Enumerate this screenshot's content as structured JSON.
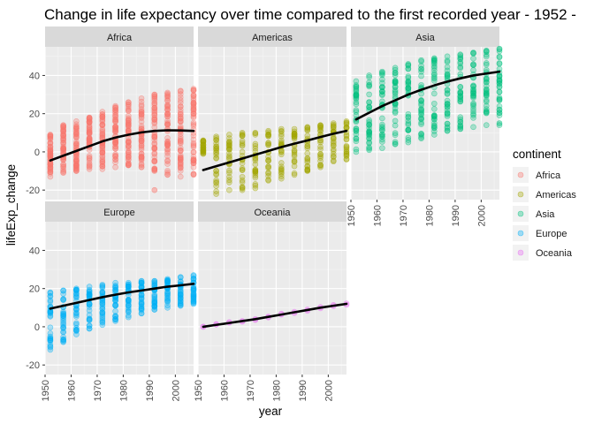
{
  "chart_data": {
    "type": "scatter",
    "title": "Change in life expectancy over time compared to the first recorded year - 1952 -",
    "xlabel": "year",
    "ylabel": "lifeExp_change",
    "xlim": [
      1950,
      2007
    ],
    "ylim": [
      -25,
      55
    ],
    "x_ticks": [
      1950,
      1960,
      1970,
      1980,
      1990,
      2000
    ],
    "y_ticks": [
      -20,
      0,
      20,
      40
    ],
    "x": [
      1952,
      1957,
      1962,
      1967,
      1972,
      1977,
      1982,
      1987,
      1992,
      1997,
      2002,
      2007
    ],
    "grid": true,
    "background": "#EBEBEB",
    "point_alpha": 0.3,
    "smooth_color": "#000000",
    "legend": {
      "title": "continent",
      "position": "right",
      "entries": [
        "Africa",
        "Americas",
        "Asia",
        "Europe",
        "Oceania"
      ]
    },
    "panels": [
      {
        "name": "Africa",
        "color": "#F8766D",
        "n": 52,
        "y_min": [
          -13,
          -11,
          -10,
          -9,
          -9,
          -8,
          -7,
          -8,
          -10,
          -12,
          -13,
          -12
        ],
        "y_max": [
          9,
          14,
          16,
          18,
          21,
          24,
          26,
          28,
          30,
          31,
          32,
          33
        ],
        "outliers": [
          {
            "x": 1992,
            "y": -20
          }
        ],
        "smooth": [
          -4.5,
          -2,
          0.5,
          3,
          5.5,
          7.5,
          9,
          10.2,
          11,
          11.3,
          11.2,
          11
        ]
      },
      {
        "name": "Americas",
        "color": "#A3A500",
        "n": 25,
        "y_min": [
          -1,
          -22,
          -20,
          -20,
          -19,
          -15,
          -14,
          -12,
          -10,
          -8,
          -5,
          -4
        ],
        "y_max": [
          6,
          8,
          9,
          10,
          10,
          11,
          12,
          12,
          13,
          14,
          15,
          16
        ],
        "outliers": [],
        "smooth": [
          -9.5,
          -7.5,
          -5.5,
          -3.5,
          -1.5,
          0.5,
          2.5,
          4.3,
          6,
          7.8,
          9.5,
          11
        ]
      },
      {
        "name": "Asia",
        "color": "#00BF7D",
        "n": 33,
        "y_min": [
          0,
          1,
          2,
          4,
          5,
          7,
          9,
          11,
          12,
          13,
          14,
          14
        ],
        "y_max": [
          37,
          40,
          42,
          44,
          46,
          48,
          49,
          50,
          51,
          52,
          53,
          54
        ],
        "outliers": [
          {
            "x": 2007,
            "y": 15
          }
        ],
        "smooth": [
          17,
          20.5,
          24,
          27,
          30,
          32.5,
          34.8,
          36.8,
          38.5,
          40,
          41,
          42
        ]
      },
      {
        "name": "Europe",
        "color": "#00B0F6",
        "n": 30,
        "y_min": [
          -12,
          -8,
          -4,
          -1,
          1,
          3,
          5,
          7,
          9,
          10,
          11,
          12
        ],
        "y_max": [
          18,
          19,
          20,
          21,
          22,
          23,
          23,
          24,
          24,
          25,
          26,
          27
        ],
        "outliers": [],
        "smooth": [
          9.5,
          11,
          12.5,
          14,
          15.5,
          16.8,
          18,
          19,
          20,
          21,
          21.7,
          22.5
        ]
      },
      {
        "name": "Oceania",
        "color": "#E76BF3",
        "n": 2,
        "y_min": [
          0,
          1.2,
          2.2,
          2.7,
          3.6,
          4.9,
          6.4,
          7.2,
          8.4,
          9.7,
          10.8,
          11.5
        ],
        "y_max": [
          0,
          1.4,
          2.4,
          3.0,
          4.0,
          5.3,
          6.8,
          7.8,
          9.0,
          10.3,
          11.4,
          12.2
        ],
        "outliers": [],
        "smooth": [
          0,
          1,
          2,
          3,
          4,
          5.2,
          6.4,
          7.6,
          8.8,
          10,
          11,
          12
        ]
      }
    ]
  }
}
